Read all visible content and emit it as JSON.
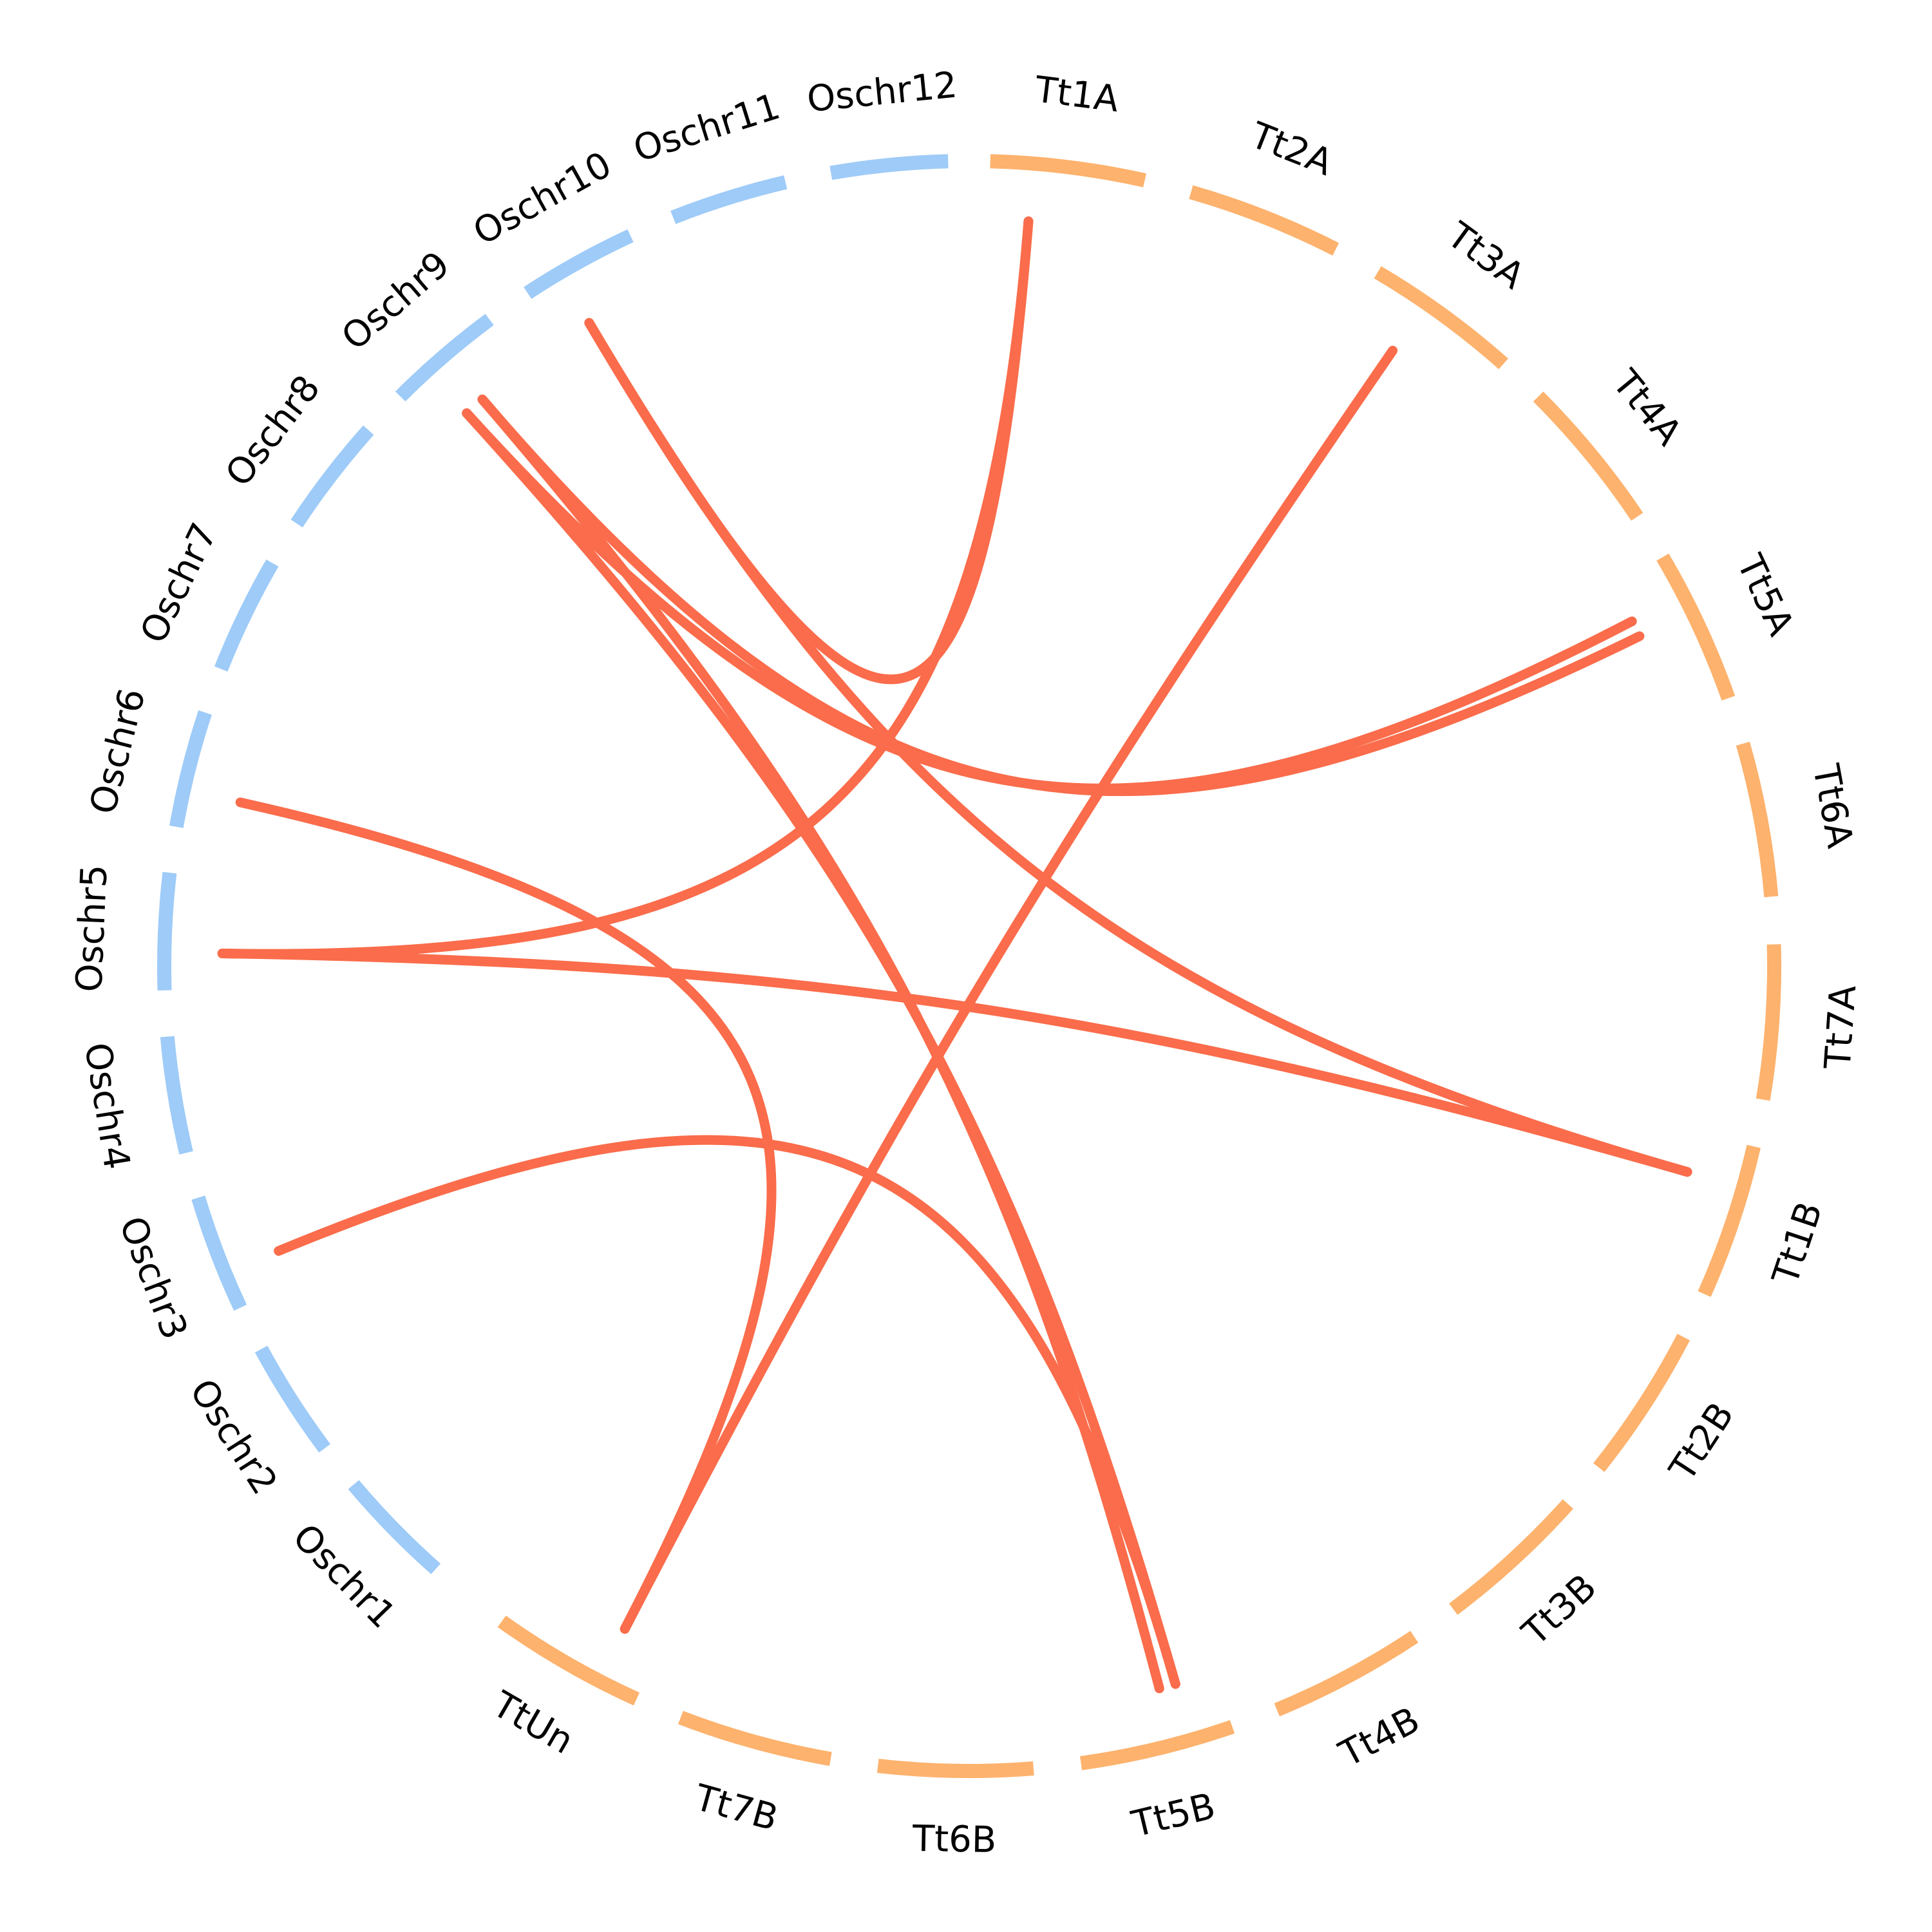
{
  "colors": {
    "rice": "#9ecbf8",
    "wheat": "#fdb26d",
    "link": "#fa6c4b"
  },
  "chromosomes": [
    {
      "label": "Oschr1",
      "genome": "rice"
    },
    {
      "label": "Oschr2",
      "genome": "rice"
    },
    {
      "label": "Oschr3",
      "genome": "rice"
    },
    {
      "label": "Oschr4",
      "genome": "rice"
    },
    {
      "label": "Oschr5",
      "genome": "rice"
    },
    {
      "label": "Oschr6",
      "genome": "rice"
    },
    {
      "label": "Oschr7",
      "genome": "rice"
    },
    {
      "label": "Oschr8",
      "genome": "rice"
    },
    {
      "label": "Oschr9",
      "genome": "rice"
    },
    {
      "label": "Oschr10",
      "genome": "rice"
    },
    {
      "label": "Oschr11",
      "genome": "rice"
    },
    {
      "label": "Oschr12",
      "genome": "rice"
    },
    {
      "label": "Tt1A",
      "genome": "wheat"
    },
    {
      "label": "Tt2A",
      "genome": "wheat"
    },
    {
      "label": "Tt3A",
      "genome": "wheat"
    },
    {
      "label": "Tt4A",
      "genome": "wheat"
    },
    {
      "label": "Tt5A",
      "genome": "wheat"
    },
    {
      "label": "Tt6A",
      "genome": "wheat"
    },
    {
      "label": "Tt7A",
      "genome": "wheat"
    },
    {
      "label": "Tt1B",
      "genome": "wheat"
    },
    {
      "label": "Tt2B",
      "genome": "wheat"
    },
    {
      "label": "Tt3B",
      "genome": "wheat"
    },
    {
      "label": "Tt4B",
      "genome": "wheat"
    },
    {
      "label": "Tt5B",
      "genome": "wheat"
    },
    {
      "label": "Tt6B",
      "genome": "wheat"
    },
    {
      "label": "Tt7B",
      "genome": "wheat"
    },
    {
      "label": "TtUn",
      "genome": "wheat"
    }
  ],
  "links": [
    {
      "from": "Oschr10",
      "to": "Tt1A"
    },
    {
      "from": "Oschr5",
      "to": "Tt1A"
    },
    {
      "from": "Oschr9",
      "to": "Tt5A"
    },
    {
      "from": "Oschr9",
      "to": "Tt5A"
    },
    {
      "from": "Oschr9",
      "to": "Tt5B"
    },
    {
      "from": "Oschr9",
      "to": "Tt5B"
    },
    {
      "from": "Oschr10",
      "to": "Tt1B"
    },
    {
      "from": "Oschr5",
      "to": "Tt1B"
    },
    {
      "from": "Oschr6",
      "to": "TtUn"
    },
    {
      "from": "Oschr3",
      "to": "Tt5B"
    },
    {
      "from": "Tt3A",
      "to": "TtUn"
    }
  ]
}
